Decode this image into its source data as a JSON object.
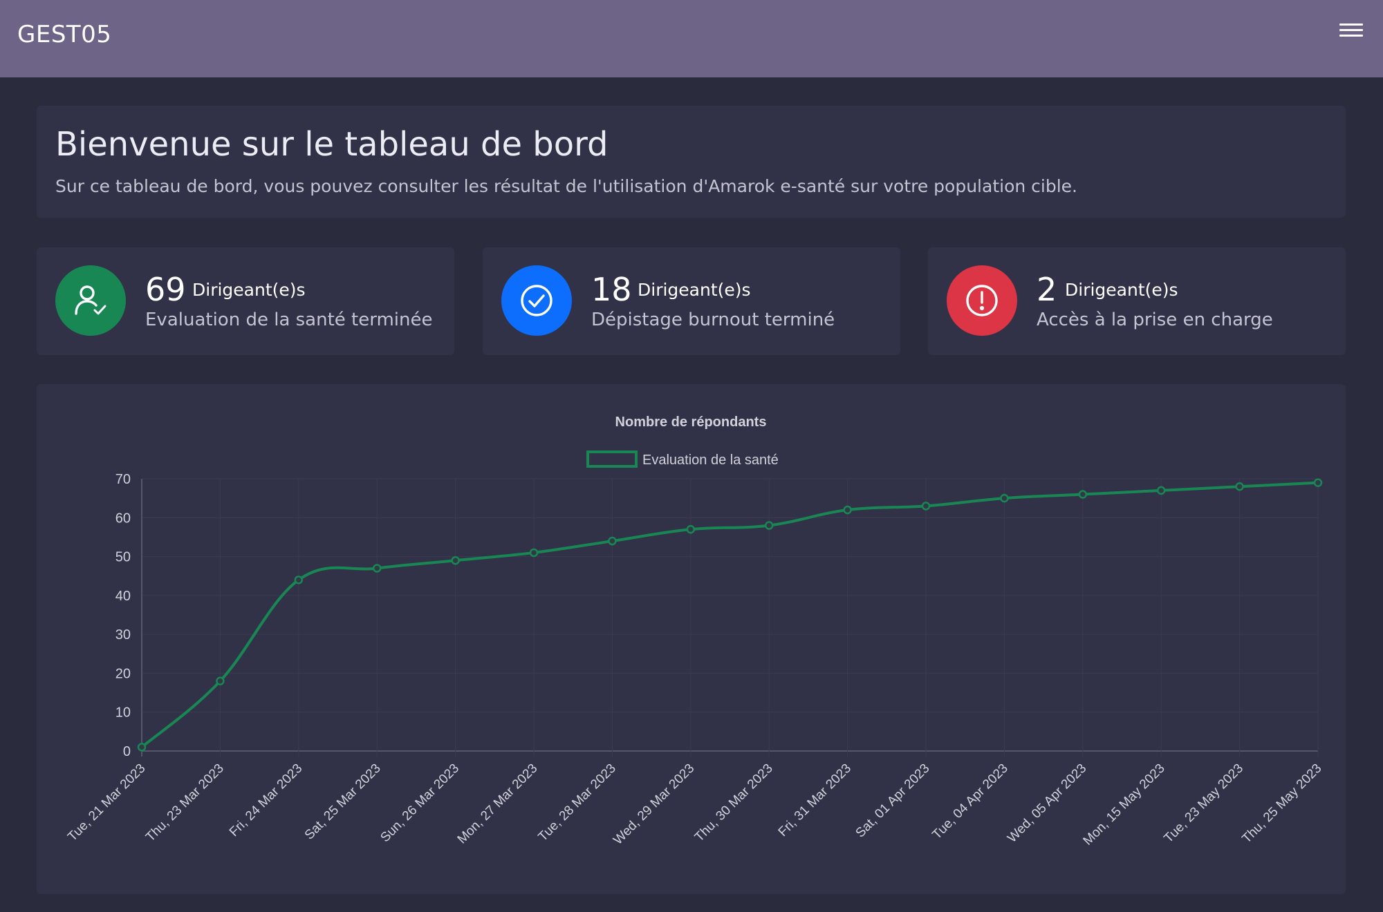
{
  "app": {
    "title": "GEST05"
  },
  "colors": {
    "topbar": "#6e6487",
    "background": "#2a2b3d",
    "panel": "#313247",
    "green": "#198754",
    "blue": "#0d6efd",
    "red": "#dc3545"
  },
  "welcome": {
    "title": "Bienvenue sur le tableau de bord",
    "subtitle": "Sur ce tableau de bord, vous pouvez consulter les résultat de l'utilisation d'Amarok e-santé sur votre population cible."
  },
  "stats": [
    {
      "value": "69",
      "unit": "Dirigeant(e)s",
      "label": "Evaluation de la santé terminée",
      "icon": "user-check-icon",
      "color": "#198754"
    },
    {
      "value": "18",
      "unit": "Dirigeant(e)s",
      "label": "Dépistage burnout terminé",
      "icon": "check-circle-icon",
      "color": "#0d6efd"
    },
    {
      "value": "2",
      "unit": "Dirigeant(e)s",
      "label": "Accès à la prise en charge",
      "icon": "exclamation-circle-icon",
      "color": "#dc3545"
    }
  ],
  "chart_data": {
    "type": "line",
    "title": "Nombre de répondants",
    "categories": [
      "Tue, 21 Mar 2023",
      "Thu, 23 Mar 2023",
      "Fri, 24 Mar 2023",
      "Sat, 25 Mar 2023",
      "Sun, 26 Mar 2023",
      "Mon, 27 Mar 2023",
      "Tue, 28 Mar 2023",
      "Wed, 29 Mar 2023",
      "Thu, 30 Mar 2023",
      "Fri, 31 Mar 2023",
      "Sat, 01 Apr 2023",
      "Tue, 04 Apr 2023",
      "Wed, 05 Apr 2023",
      "Mon, 15 May 2023",
      "Tue, 23 May 2023",
      "Thu, 25 May 2023"
    ],
    "series": [
      {
        "name": "Evaluation de la santé",
        "color": "#198754",
        "values": [
          1,
          18,
          44,
          47,
          49,
          51,
          54,
          57,
          58,
          62,
          63,
          65,
          66,
          67,
          68,
          69
        ]
      }
    ],
    "ylim": [
      0,
      70
    ],
    "yticks": [
      0,
      10,
      20,
      30,
      40,
      50,
      60,
      70
    ],
    "legend": "top-center",
    "grid": true
  }
}
